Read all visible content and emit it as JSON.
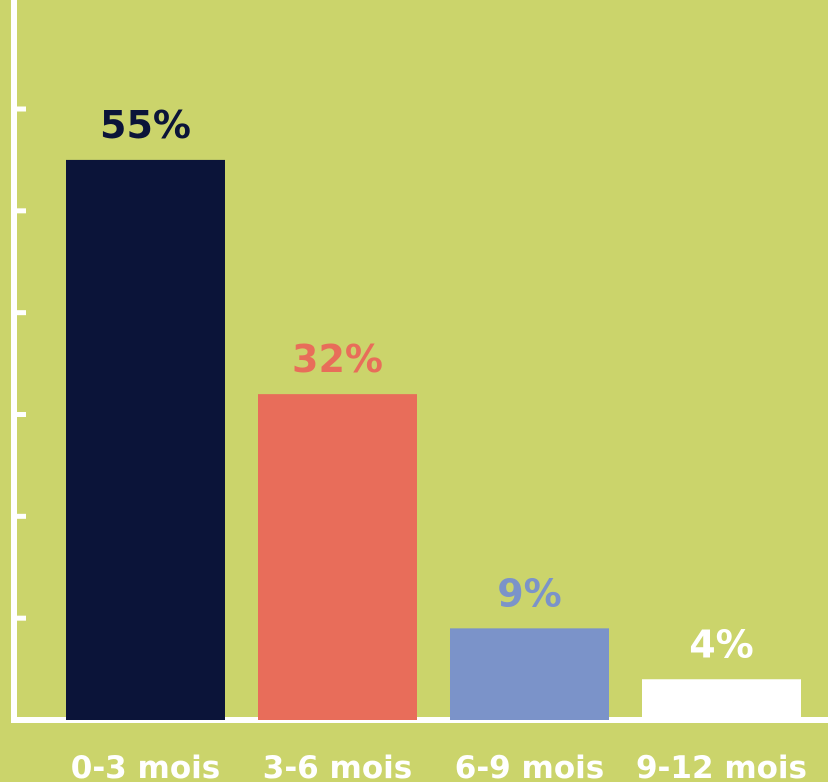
{
  "chart_data": {
    "type": "bar",
    "categories": [
      "0-3 mois",
      "3-6 mois",
      "6-9 mois",
      "9-12 mois"
    ],
    "values": [
      55,
      32,
      9,
      4
    ],
    "value_labels": [
      "55%",
      "32%",
      "9%",
      "4%"
    ],
    "colors": [
      "#0b1439",
      "#e86d5a",
      "#7b93c9",
      "#ffffff"
    ],
    "label_colors": [
      "#0b1439",
      "#e86d5a",
      "#7b93c9",
      "#ffffff"
    ],
    "ylim": [
      0,
      60
    ],
    "title": "",
    "xlabel": "",
    "ylabel": "",
    "axis_color": "#ffffff",
    "background": "#cbd46b"
  }
}
